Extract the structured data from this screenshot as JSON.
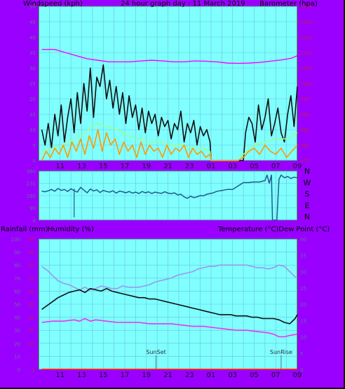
{
  "colors": {
    "background": "#9900ff",
    "plot_area": "#80ffff",
    "grid": "#66c4d8",
    "windspeed_gust": "#101010",
    "windspeed_avg": "#ff9900",
    "windspeed_avg2": "#99ff99",
    "barometer": "#ff00ff",
    "wind_direction": "#1f5b8a",
    "temperature": "#101010",
    "dew_point": "#ee33ee",
    "humidity": "#9999ee",
    "rainfall": "#ff2020"
  },
  "chart_data": [
    {
      "type": "line",
      "id": "wind-baro",
      "title": "24 hour graph day : 11 March 2019",
      "ylabel_left": "Windspeed (kph)",
      "ylabel_right": "Barometer (hpa)",
      "x_ticks": [
        "11",
        "13",
        "15",
        "17",
        "19",
        "21",
        "23",
        "01",
        "03",
        "05",
        "07",
        "09"
      ],
      "x_range": [
        9,
        33
      ],
      "y_left": {
        "range": [
          0,
          50
        ],
        "ticks": [
          0,
          5,
          10,
          15,
          20,
          25,
          30,
          35,
          40,
          45,
          50
        ]
      },
      "y_right": {
        "range": [
          975,
          1025
        ],
        "ticks": [
          975,
          980,
          985,
          990,
          995,
          1000,
          1005,
          1010,
          1015,
          1020,
          1025
        ]
      },
      "grid": true,
      "series": [
        {
          "axis": "right",
          "color_key": "barometer",
          "x": [
            9.3,
            10.5,
            11.5,
            12.5,
            13.5,
            14.5,
            15.5,
            16.5,
            17.5,
            18.5,
            19.5,
            20.5,
            21.5,
            22.5,
            23.5,
            24.5,
            25.5,
            26.5,
            27.5,
            28.5,
            29.5,
            30.5,
            31.5,
            32.5,
            33
          ],
          "values": [
            1011,
            1011,
            1010,
            1009,
            1008,
            1007.5,
            1007,
            1007,
            1007,
            1007.3,
            1007.5,
            1007.3,
            1007,
            1007,
            1007.3,
            1007.2,
            1007,
            1006.6,
            1006.5,
            1006.6,
            1006.8,
            1007.2,
            1007.6,
            1008.2,
            1009
          ]
        },
        {
          "axis": "left",
          "color_key": "windspeed_gust",
          "x": [
            9.3,
            9.6,
            9.9,
            10.2,
            10.5,
            10.8,
            11.1,
            11.4,
            11.7,
            12,
            12.3,
            12.6,
            12.9,
            13.2,
            13.5,
            13.8,
            14.1,
            14.4,
            14.7,
            15,
            15.3,
            15.6,
            15.9,
            16.2,
            16.5,
            16.8,
            17.1,
            17.4,
            17.7,
            18,
            18.3,
            18.6,
            18.9,
            19.2,
            19.5,
            19.8,
            20.1,
            20.4,
            20.7,
            21,
            21.3,
            21.6,
            21.9,
            22.2,
            22.5,
            22.8,
            23.1,
            23.4,
            23.7,
            24,
            24.3,
            24.6,
            24.9,
            25,
            26,
            27,
            27.5,
            28,
            28.2,
            28.5,
            28.8,
            29.1,
            29.4,
            29.7,
            30,
            30.3,
            30.6,
            30.9,
            31.2,
            31.5,
            31.8,
            32.1,
            32.4,
            32.7,
            33
          ],
          "values": [
            10,
            5,
            12,
            4,
            15,
            8,
            18,
            6,
            14,
            20,
            9,
            22,
            12,
            25,
            16,
            30,
            14,
            27,
            24,
            31,
            20,
            26,
            17,
            24,
            15,
            22,
            12,
            21,
            14,
            18,
            10,
            17,
            9,
            16,
            12,
            15,
            8,
            14,
            11,
            13,
            7,
            12,
            10,
            16,
            6,
            12,
            9,
            13,
            5,
            11,
            8,
            10,
            6,
            0,
            0,
            0,
            0,
            0,
            9,
            14,
            12,
            6,
            18,
            10,
            14,
            20,
            8,
            12,
            17,
            9,
            6,
            15,
            21,
            11,
            24
          ]
        },
        {
          "axis": "left",
          "color_key": "windspeed_avg2",
          "x": [
            9.3,
            10.3,
            11.3,
            12.3,
            13.3,
            14.3,
            15.3,
            16.3,
            17.3,
            18.3,
            19.3,
            20.3,
            21.3,
            22.3,
            23.3,
            24.3,
            24.9,
            25,
            27.5,
            28,
            29,
            30,
            31,
            32,
            33
          ],
          "values": [
            3,
            4,
            5,
            7,
            9,
            12,
            11,
            10,
            8,
            7,
            6,
            6,
            5,
            5,
            4,
            4,
            3,
            0,
            0,
            2,
            5,
            6,
            7,
            7,
            9
          ]
        },
        {
          "axis": "left",
          "color_key": "windspeed_avg",
          "x": [
            9.3,
            9.7,
            10.1,
            10.5,
            10.9,
            11.3,
            11.7,
            12.1,
            12.5,
            12.9,
            13.3,
            13.7,
            14.1,
            14.5,
            14.9,
            15.3,
            15.7,
            16.1,
            16.5,
            16.9,
            17.3,
            17.7,
            18.1,
            18.5,
            18.9,
            19.3,
            19.7,
            20.1,
            20.5,
            20.9,
            21.3,
            21.7,
            22.1,
            22.5,
            22.9,
            23.3,
            23.7,
            24.1,
            24.5,
            24.9,
            25,
            27.5,
            28,
            28.5,
            29,
            29.5,
            30,
            30.5,
            31,
            31.5,
            32,
            32.5,
            33
          ],
          "values": [
            0,
            3,
            1,
            4,
            2,
            5,
            1,
            6,
            3,
            7,
            2,
            8,
            4,
            10,
            3,
            9,
            5,
            7,
            2,
            6,
            3,
            5,
            1,
            6,
            2,
            5,
            3,
            4,
            1,
            5,
            2,
            4,
            3,
            5,
            1,
            4,
            2,
            3,
            1,
            2,
            0,
            0,
            1,
            3,
            4,
            2,
            5,
            3,
            2,
            4,
            1,
            3,
            5
          ]
        }
      ]
    },
    {
      "type": "line",
      "id": "wind-direction",
      "ylabel_right": [
        "N",
        "W",
        "S",
        "E",
        "N"
      ],
      "y_ticks": [
        0,
        90,
        180,
        270,
        360
      ],
      "y_range": [
        0,
        360
      ],
      "x_range": [
        9,
        33
      ],
      "grid": true,
      "series": [
        {
          "color_key": "wind_direction",
          "x": [
            9.3,
            9.6,
            9.9,
            10.2,
            10.5,
            10.8,
            11.1,
            11.4,
            11.7,
            12.0,
            12.3,
            12.6,
            12.9,
            13.2,
            13.5,
            13.8,
            14.1,
            14.4,
            14.7,
            15.0,
            15.3,
            15.6,
            15.9,
            16.2,
            16.5,
            16.8,
            17.1,
            17.4,
            17.7,
            18.0,
            18.3,
            18.6,
            18.9,
            19.2,
            19.5,
            19.8,
            20.1,
            20.4,
            20.7,
            21.0,
            21.3,
            21.6,
            21.9,
            22.2,
            22.5,
            22.8,
            23.1,
            23.4,
            23.7,
            24.0,
            24.3,
            24.6,
            24.9,
            25.2,
            25.5,
            25.8,
            26.2,
            26.5,
            27.0,
            27.5,
            28.0,
            28.5,
            29.0,
            29.5,
            30.0,
            30.2,
            30.4,
            30.6,
            30.7,
            30.9,
            31.1,
            31.3,
            31.5,
            31.8,
            32.1,
            32.4,
            32.7,
            33.0
          ],
          "values": [
            212,
            208,
            215,
            225,
            212,
            232,
            218,
            225,
            210,
            230,
            216,
            205,
            240,
            220,
            200,
            228,
            214,
            222,
            202,
            218,
            210,
            205,
            215,
            198,
            212,
            208,
            200,
            210,
            198,
            205,
            195,
            210,
            200,
            208,
            195,
            205,
            200,
            196,
            208,
            198,
            194,
            200,
            185,
            190,
            170,
            160,
            175,
            165,
            170,
            180,
            178,
            190,
            195,
            200,
            210,
            215,
            220,
            225,
            225,
            250,
            275,
            275,
            280,
            280,
            290,
            330,
            270,
            330,
            0,
            0,
            0,
            300,
            330,
            310,
            320,
            305,
            315,
            310
          ]
        }
      ]
    },
    {
      "type": "line",
      "id": "temp-hum",
      "ylabel_left": [
        "Rainfall (mm)",
        "Humidity (%)"
      ],
      "ylabel_right": "Temperature (°C)Dew Point (°C)",
      "x_ticks": [
        "11",
        "13",
        "15",
        "17",
        "19",
        "21",
        "23",
        "01",
        "03",
        "05",
        "07",
        "09"
      ],
      "x_range": [
        9,
        33
      ],
      "y_left_humidity": {
        "range": [
          0,
          100
        ],
        "ticks": [
          0,
          10,
          20,
          30,
          40,
          50,
          60,
          70,
          80,
          90,
          100
        ]
      },
      "y_left_rain": {
        "range": [
          0,
          50
        ],
        "ticks": [
          0,
          5,
          10,
          15,
          20,
          25,
          30,
          35,
          40,
          45,
          50
        ]
      },
      "y_right": {
        "range": [
          0,
          40
        ],
        "ticks": [
          0,
          5,
          10,
          15,
          20,
          25,
          30,
          35,
          40
        ]
      },
      "grid": true,
      "annotations": [
        {
          "label": "SunSet",
          "x": 19.9
        },
        {
          "label": "SunRise",
          "x": 31.5
        }
      ],
      "series": [
        {
          "axis": "left_humidity",
          "color_key": "humidity",
          "x": [
            9.3,
            9.8,
            10.3,
            10.8,
            11.3,
            11.8,
            12.3,
            12.8,
            13.3,
            13.8,
            14.3,
            14.8,
            15.3,
            15.8,
            16.3,
            16.8,
            17.3,
            17.8,
            18.3,
            18.8,
            19.3,
            19.8,
            20.3,
            20.8,
            21.3,
            21.8,
            22.3,
            22.8,
            23.3,
            23.8,
            24.3,
            24.8,
            25.3,
            25.8,
            26.3,
            26.8,
            27.3,
            27.8,
            28.3,
            28.8,
            29.3,
            29.8,
            30.3,
            30.8,
            31.3,
            31.8,
            32.3,
            32.8,
            33
          ],
          "values": [
            79,
            76,
            72,
            68,
            66,
            65,
            63,
            61,
            63,
            61,
            62,
            64,
            63,
            62,
            62,
            64,
            63,
            63,
            63,
            64,
            65,
            67,
            68,
            69,
            70,
            72,
            73,
            74,
            75,
            77,
            78,
            79,
            79,
            80,
            80,
            80,
            80,
            80,
            80,
            79,
            78,
            78,
            77,
            78,
            80,
            79,
            75,
            71,
            70
          ]
        },
        {
          "axis": "left_humidity",
          "color_key": "temperature",
          "x": [
            9.3,
            9.8,
            10.3,
            10.8,
            11.3,
            11.8,
            12.3,
            12.8,
            13.3,
            13.8,
            14.3,
            14.8,
            15.3,
            15.8,
            16.3,
            16.8,
            17.3,
            17.8,
            18.3,
            18.8,
            19.3,
            19.8,
            20.3,
            20.8,
            21.3,
            21.8,
            22.3,
            22.8,
            23.3,
            23.8,
            24.3,
            24.8,
            25.3,
            25.8,
            26.3,
            26.8,
            27.3,
            27.8,
            28.3,
            28.8,
            29.3,
            29.8,
            30.3,
            30.8,
            31.3,
            31.8,
            32.3,
            32.8,
            33
          ],
          "values": [
            46,
            49,
            52,
            55,
            57,
            59,
            60,
            61,
            59,
            62,
            61,
            60,
            62,
            60,
            59,
            58,
            57,
            56,
            55,
            55,
            54,
            54,
            53,
            52,
            51,
            50,
            49,
            48,
            47,
            46,
            45,
            44,
            43,
            42,
            42,
            42,
            41,
            41,
            41,
            40,
            40,
            39,
            39,
            39,
            38,
            36,
            35,
            39,
            42
          ]
        },
        {
          "axis": "left_humidity",
          "color_key": "dew_point",
          "x": [
            9.3,
            10.3,
            11.3,
            12.3,
            12.8,
            13.3,
            13.8,
            14.3,
            15.3,
            16.3,
            17.3,
            18.3,
            19.3,
            20.3,
            21.3,
            22.3,
            23.3,
            24.3,
            25.3,
            26.3,
            27.3,
            28.3,
            29.3,
            30.3,
            30.8,
            31.3,
            31.8,
            32.3,
            33
          ],
          "values": [
            36,
            37,
            37,
            38,
            37,
            39,
            37,
            38,
            37,
            36,
            36,
            36,
            35,
            35,
            35,
            34,
            33,
            33,
            32,
            31,
            30,
            30,
            29,
            28,
            27,
            25,
            25,
            26,
            27
          ]
        },
        {
          "axis": "left_rain",
          "color_key": "rainfall",
          "x": [
            9.3,
            33
          ],
          "values": [
            0,
            0
          ]
        }
      ]
    }
  ]
}
